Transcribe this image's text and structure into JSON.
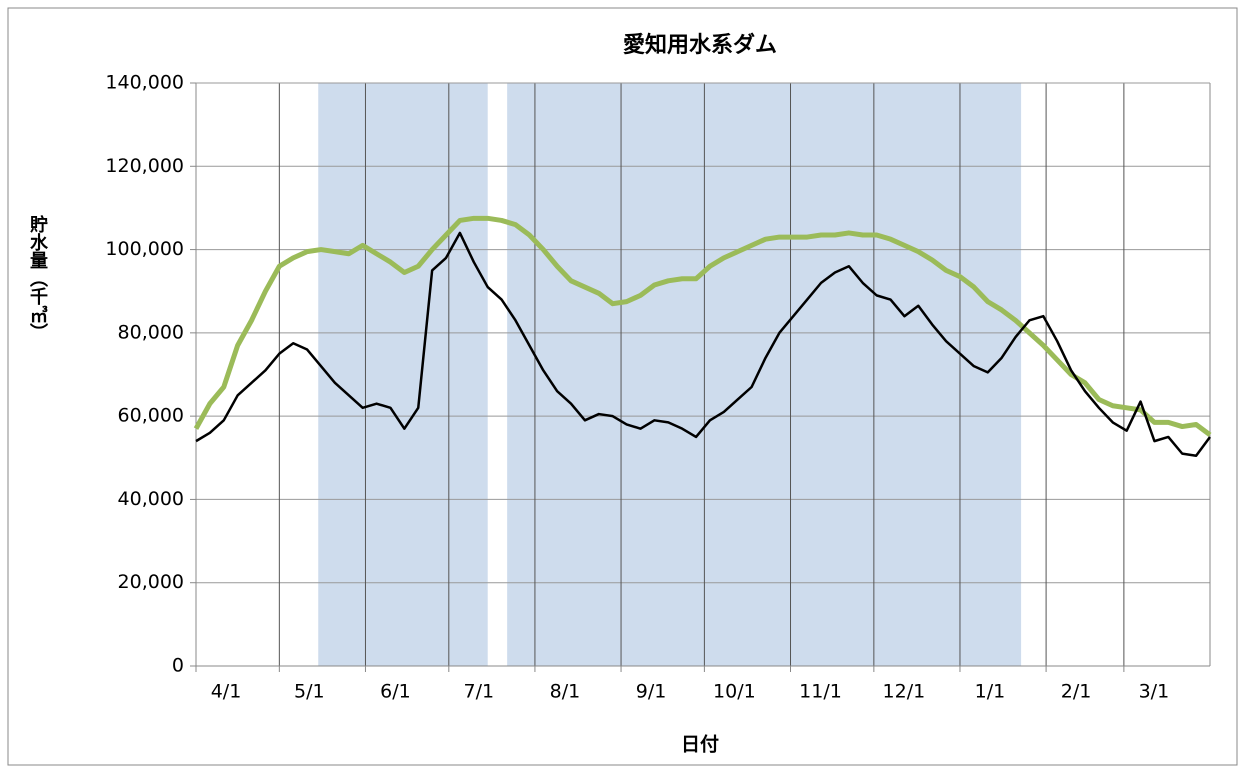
{
  "chart_data": {
    "type": "line",
    "title": "愛知用水系ダム",
    "xlabel": "日付",
    "ylabel": "貯水量（千㎥）",
    "x": [
      0,
      5,
      10,
      15,
      20,
      25,
      30,
      35,
      40,
      45,
      50,
      55,
      60,
      65,
      70,
      75,
      80,
      85,
      90,
      95,
      100,
      105,
      110,
      115,
      120,
      125,
      130,
      135,
      140,
      145,
      150,
      155,
      160,
      165,
      170,
      175,
      180,
      185,
      190,
      195,
      200,
      205,
      210,
      215,
      220,
      225,
      230,
      235,
      240,
      245,
      250,
      255,
      260,
      265,
      270,
      275,
      280,
      285,
      290,
      295,
      300,
      305,
      310,
      315,
      320,
      325,
      330,
      335,
      340,
      345,
      350,
      355,
      360,
      365
    ],
    "series": [
      {
        "color": "#000000",
        "values": [
          54000,
          56000,
          59000,
          65000,
          68000,
          71000,
          75000,
          77500,
          76000,
          72000,
          68000,
          65000,
          62000,
          63000,
          62000,
          57000,
          62000,
          95000,
          98000,
          104000,
          97000,
          91000,
          88000,
          83000,
          77000,
          71000,
          66000,
          63000,
          59000,
          60500,
          60000,
          58000,
          57000,
          59000,
          58500,
          57000,
          55000,
          59000,
          61000,
          64000,
          67000,
          74000,
          80000,
          84000,
          88000,
          92000,
          94500,
          96000,
          92000,
          89000,
          88000,
          84000,
          86500,
          82000,
          78000,
          75000,
          72000,
          70500,
          74000,
          79000,
          83000,
          84000,
          78000,
          71000,
          66000,
          62000,
          58500,
          56500,
          63500,
          54000,
          55000,
          51000,
          50500,
          55000
        ]
      },
      {
        "color": "#9bbb59",
        "values": [
          57000,
          63000,
          67000,
          77000,
          83000,
          90000,
          96000,
          98000,
          99500,
          100000,
          99500,
          99000,
          101000,
          99000,
          97000,
          94500,
          96000,
          100000,
          103500,
          107000,
          107500,
          107500,
          107000,
          106000,
          103500,
          100000,
          96000,
          92500,
          91000,
          89500,
          87000,
          87500,
          89000,
          91500,
          92500,
          93000,
          93000,
          96000,
          98000,
          99500,
          101000,
          102500,
          103000,
          103000,
          103000,
          103500,
          103500,
          104000,
          103500,
          103500,
          102500,
          101000,
          99500,
          97500,
          95000,
          93500,
          91000,
          87500,
          85500,
          83000,
          80000,
          77000,
          73500,
          70000,
          68000,
          64000,
          62500,
          62000,
          61500,
          58500,
          58500,
          57500,
          58000,
          55500
        ]
      }
    ],
    "shaded_ranges": [
      [
        44,
        105
      ],
      [
        112,
        297
      ]
    ],
    "shade_color": "#c6d6ea",
    "xlim": [
      0,
      365
    ],
    "xticks": [
      {
        "value": 0,
        "label": "4/1"
      },
      {
        "value": 30,
        "label": "5/1"
      },
      {
        "value": 61,
        "label": "6/1"
      },
      {
        "value": 91,
        "label": "7/1"
      },
      {
        "value": 122,
        "label": "8/1"
      },
      {
        "value": 153,
        "label": "9/1"
      },
      {
        "value": 183,
        "label": "10/1"
      },
      {
        "value": 214,
        "label": "11/1"
      },
      {
        "value": 244,
        "label": "12/1"
      },
      {
        "value": 275,
        "label": "1/1"
      },
      {
        "value": 306,
        "label": "2/1"
      },
      {
        "value": 334,
        "label": "3/1"
      }
    ],
    "ylim": [
      0,
      140000
    ],
    "yticks": [
      0,
      {
        "value": 20000,
        "label": "20,000"
      },
      {
        "value": 40000,
        "label": "40,000"
      },
      {
        "value": 60000,
        "label": "60,000"
      },
      {
        "value": 80000,
        "label": "80,000"
      },
      {
        "value": 100000,
        "label": "100,000"
      },
      {
        "value": 120000,
        "label": "120,000"
      },
      {
        "value": 140000,
        "label": "140,000"
      }
    ],
    "grid": true
  }
}
